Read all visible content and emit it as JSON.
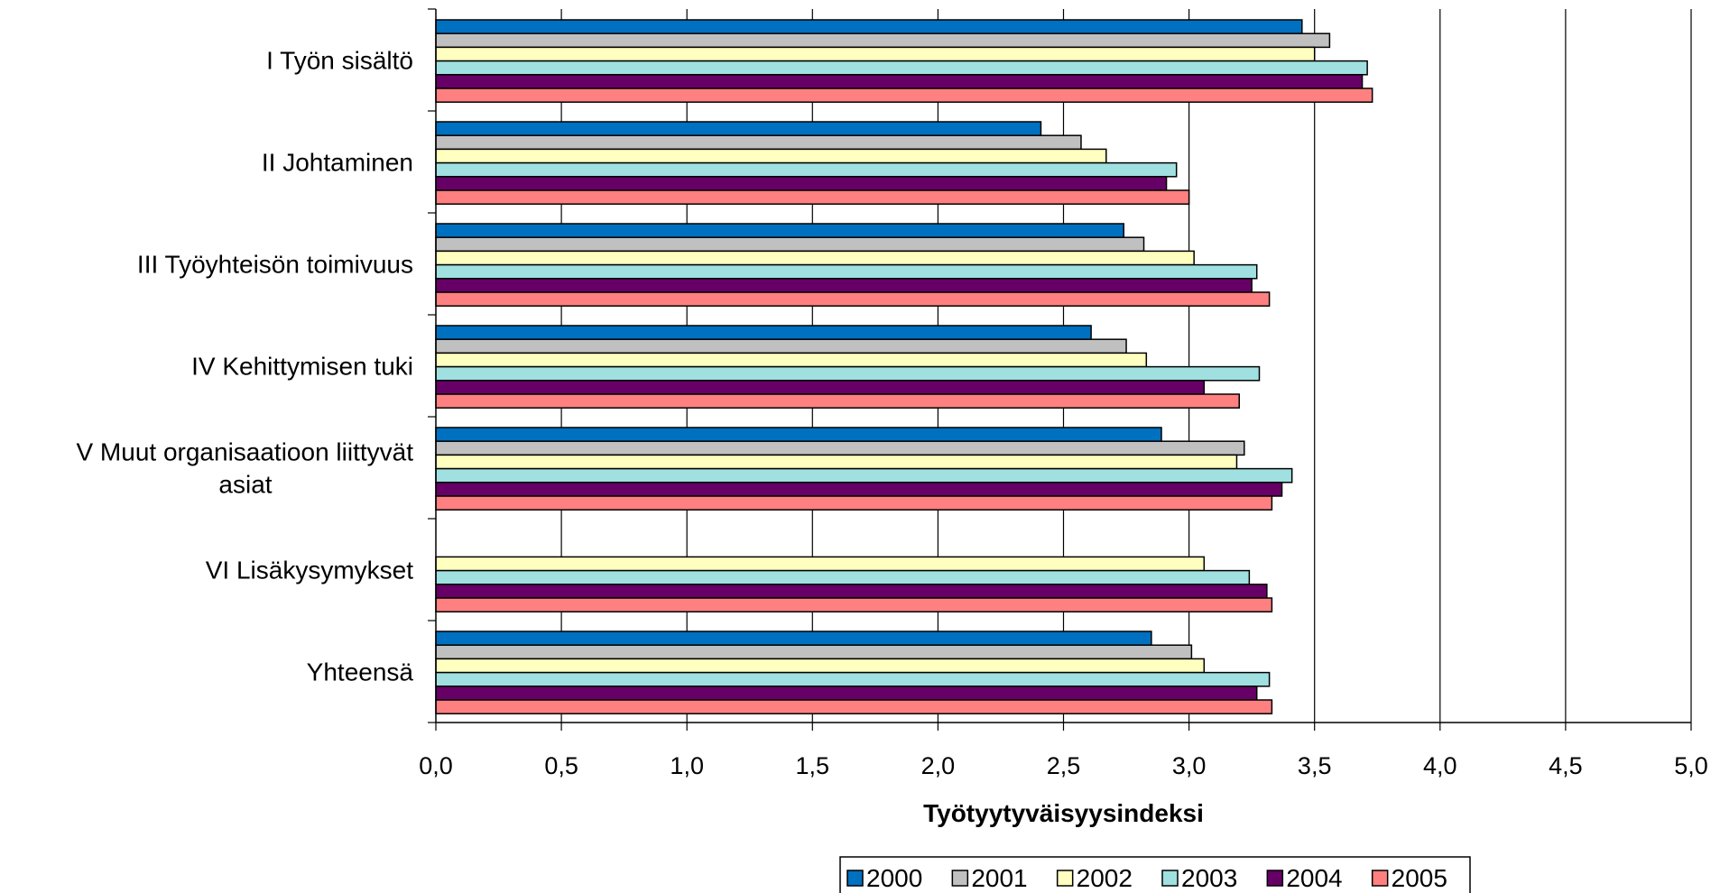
{
  "chart_data": {
    "type": "bar",
    "orientation": "horizontal",
    "categories": [
      [
        "I  Työn sisältö"
      ],
      [
        "II  Johtaminen"
      ],
      [
        "III Työyhteisön toimivuus"
      ],
      [
        "IV  Kehittymisen tuki"
      ],
      [
        "V  Muut organisaatioon liittyvät",
        "asiat"
      ],
      [
        "VI  Lisäkysymykset"
      ],
      [
        "Yhteensä"
      ]
    ],
    "series": [
      {
        "name": "2000",
        "color": "#0070C0",
        "values": [
          3.45,
          2.41,
          2.74,
          2.61,
          2.89,
          null,
          2.85
        ]
      },
      {
        "name": "2001",
        "color": "#C0C0C0",
        "values": [
          3.56,
          2.57,
          2.82,
          2.75,
          3.22,
          null,
          3.01
        ]
      },
      {
        "name": "2002",
        "color": "#FFFFC0",
        "values": [
          3.5,
          2.67,
          3.02,
          2.83,
          3.19,
          3.06,
          3.06
        ]
      },
      {
        "name": "2003",
        "color": "#A0E0E0",
        "values": [
          3.71,
          2.95,
          3.27,
          3.28,
          3.41,
          3.24,
          3.32
        ]
      },
      {
        "name": "2004",
        "color": "#660066",
        "values": [
          3.69,
          2.91,
          3.25,
          3.06,
          3.37,
          3.31,
          3.27
        ]
      },
      {
        "name": "2005",
        "color": "#FF8080",
        "values": [
          3.73,
          3.0,
          3.32,
          3.2,
          3.33,
          3.33,
          3.33
        ]
      }
    ],
    "xlim": [
      0,
      5
    ],
    "xticks": [
      "0,0",
      "0,5",
      "1,0",
      "1,5",
      "2,0",
      "2,5",
      "3,0",
      "3,5",
      "4,0",
      "4,5",
      "5,0"
    ],
    "xlabel": "Työtyytyväisyysindeksi",
    "grid": "vertical",
    "legend": "bottom"
  }
}
